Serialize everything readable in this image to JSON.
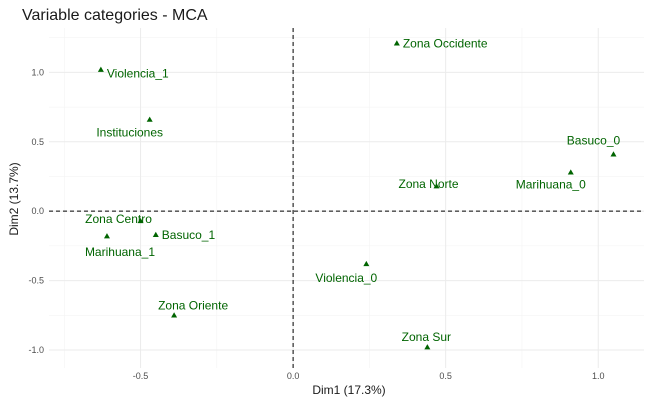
{
  "chart_data": {
    "type": "scatter",
    "title": "Variable categories - MCA",
    "xlabel": "Dim1 (17.3%)",
    "ylabel": "Dim2 (13.7%)",
    "xlim": [
      -0.8,
      1.15
    ],
    "ylim": [
      -1.13,
      1.32
    ],
    "x_ticks": [
      -0.5,
      0.0,
      0.5,
      1.0
    ],
    "x_tick_labels": [
      "-0.5",
      "0.0",
      "0.5",
      "1.0"
    ],
    "y_ticks": [
      -1.0,
      -0.5,
      0.0,
      0.5,
      1.0
    ],
    "y_tick_labels": [
      "-1.0",
      "-0.5",
      "0.0",
      "0.5",
      "1.0"
    ],
    "grid": true,
    "reference_lines": {
      "x": 0,
      "y": 0,
      "style": "dashed"
    },
    "point_color": "#006400",
    "points": [
      {
        "label": "Zona Occidente",
        "x": 0.34,
        "y": 1.21
      },
      {
        "label": "Violencia_1",
        "x": -0.63,
        "y": 1.02
      },
      {
        "label": "Instituciones",
        "x": -0.47,
        "y": 0.66
      },
      {
        "label": "Basuco_0",
        "x": 1.05,
        "y": 0.41
      },
      {
        "label": "Marihuana_0",
        "x": 0.91,
        "y": 0.28
      },
      {
        "label": "Zona Norte",
        "x": 0.47,
        "y": 0.18
      },
      {
        "label": "Zona Centro",
        "x": -0.5,
        "y": -0.07
      },
      {
        "label": "Basuco_1",
        "x": -0.45,
        "y": -0.17
      },
      {
        "label": "Marihuana_1",
        "x": -0.61,
        "y": -0.18
      },
      {
        "label": "Violencia_0",
        "x": 0.24,
        "y": -0.38
      },
      {
        "label": "Zona Oriente",
        "x": -0.39,
        "y": -0.75
      },
      {
        "label": "Zona Sur",
        "x": 0.44,
        "y": -0.98
      }
    ]
  }
}
